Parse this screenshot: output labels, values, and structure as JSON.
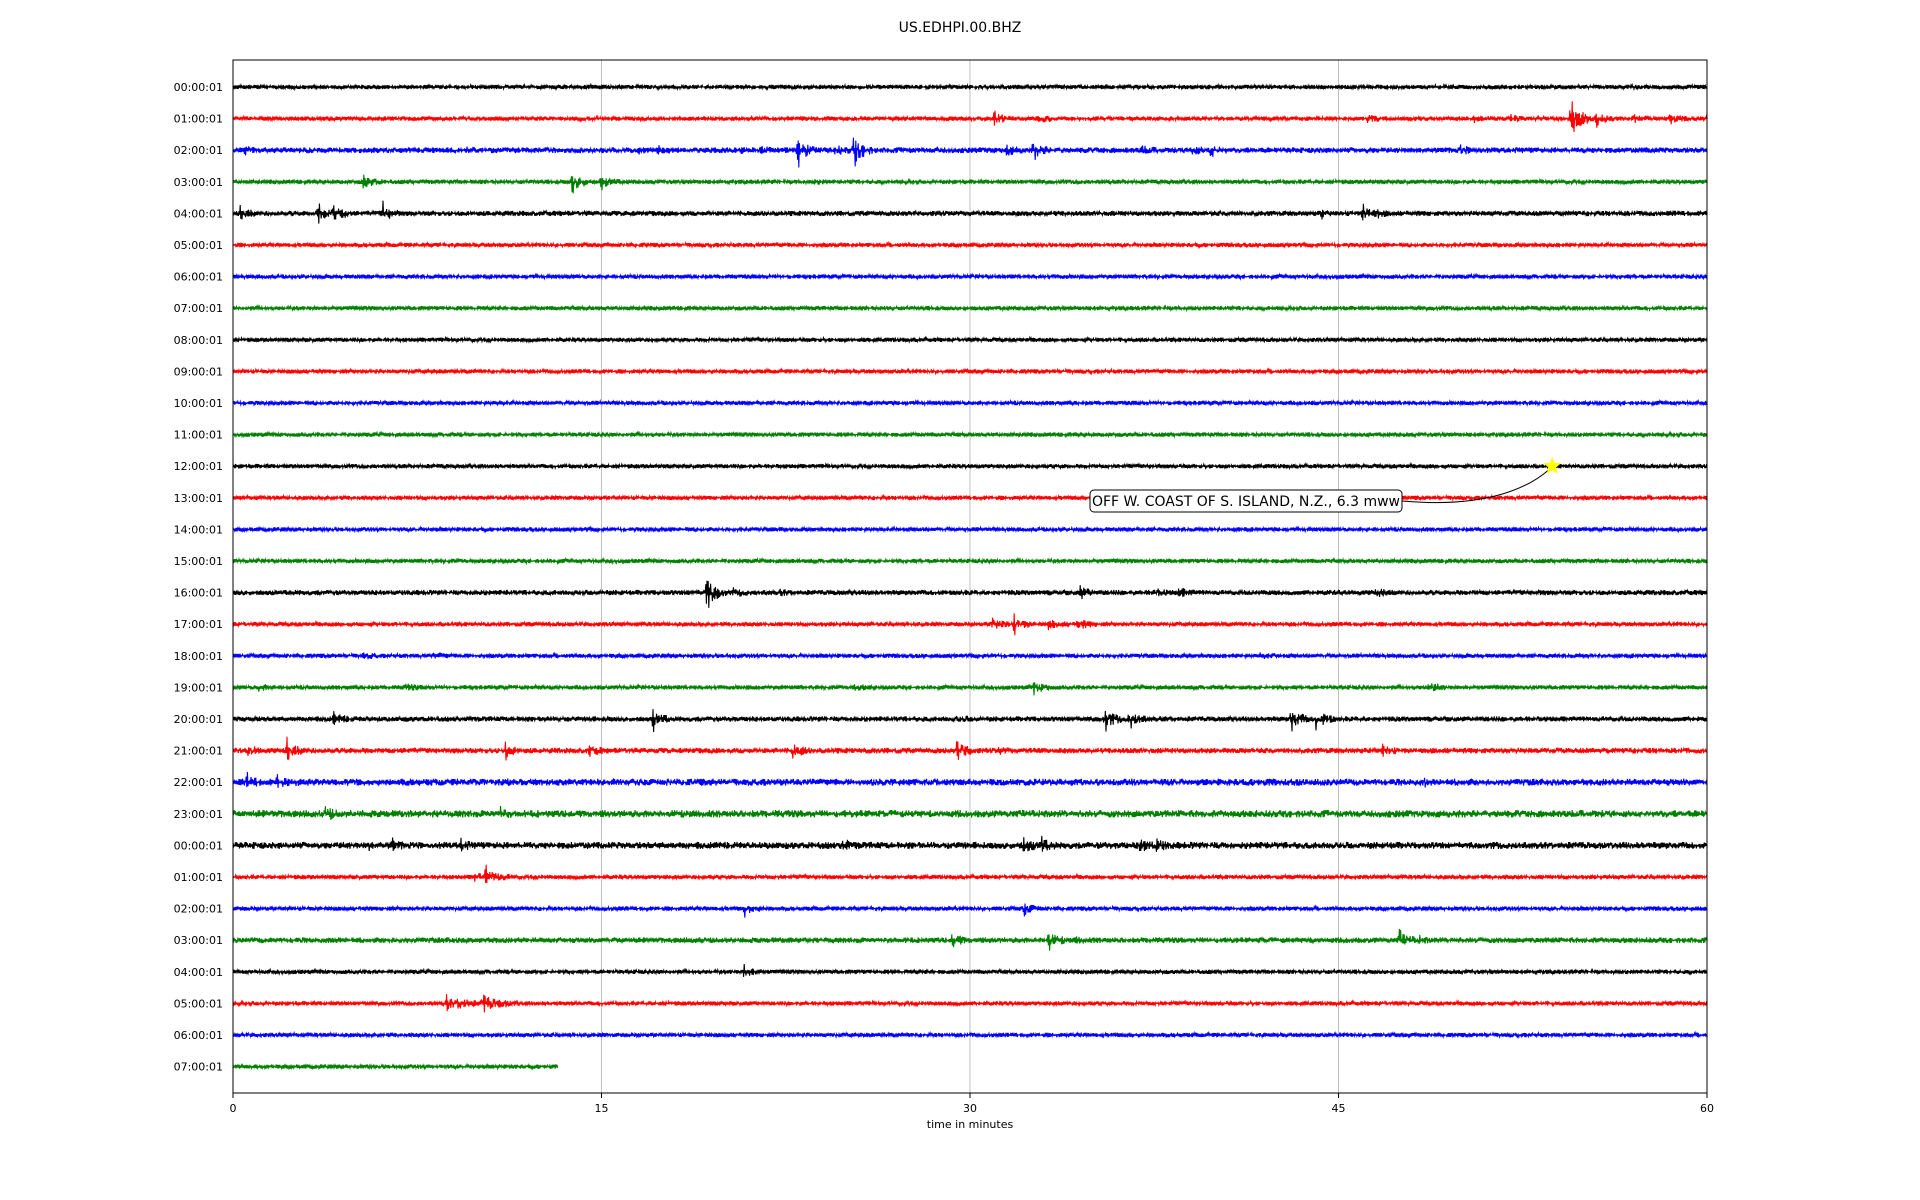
{
  "chart_data": {
    "type": "line",
    "title": "US.EDHPI.00.BHZ",
    "xlabel": "time in minutes",
    "ylabel": "",
    "xlim": [
      0,
      60
    ],
    "x_ticks": [
      "0",
      "15",
      "30",
      "45",
      "60"
    ],
    "grid": "vertical",
    "colors": [
      "#000000",
      "#ff0000",
      "#0000ff",
      "#008000"
    ],
    "rows": [
      {
        "label": "00:00:01",
        "end_min": 60,
        "noise": 1.0,
        "events": [
          {
            "t": 8.5,
            "amp": 2
          }
        ]
      },
      {
        "label": "01:00:01",
        "end_min": 60,
        "noise": 1.0,
        "events": [
          {
            "t": 31,
            "amp": 10
          },
          {
            "t": 32.8,
            "amp": 8
          },
          {
            "t": 46.2,
            "amp": 7
          },
          {
            "t": 50.5,
            "amp": 5
          },
          {
            "t": 52,
            "amp": 6
          },
          {
            "t": 54.5,
            "amp": 30
          },
          {
            "t": 55.5,
            "amp": 10
          },
          {
            "t": 57,
            "amp": 8
          },
          {
            "t": 58.5,
            "amp": 7
          },
          {
            "t": 60,
            "amp": 8
          }
        ]
      },
      {
        "label": "02:00:01",
        "end_min": 60,
        "noise": 1.3,
        "events": [
          {
            "t": 0.5,
            "amp": 8
          },
          {
            "t": 9.5,
            "amp": 5
          },
          {
            "t": 16.5,
            "amp": 5
          },
          {
            "t": 17.3,
            "amp": 8
          },
          {
            "t": 20.5,
            "amp": 6
          },
          {
            "t": 21.5,
            "amp": 7
          },
          {
            "t": 23,
            "amp": 20
          },
          {
            "t": 24.5,
            "amp": 12
          },
          {
            "t": 25.3,
            "amp": 22
          },
          {
            "t": 28.5,
            "amp": 6
          },
          {
            "t": 31.5,
            "amp": 10
          },
          {
            "t": 32.6,
            "amp": 14
          },
          {
            "t": 37,
            "amp": 8
          },
          {
            "t": 39,
            "amp": 10
          },
          {
            "t": 39.8,
            "amp": 14
          },
          {
            "t": 50,
            "amp": 8
          }
        ]
      },
      {
        "label": "03:00:01",
        "end_min": 60,
        "noise": 1.0,
        "events": [
          {
            "t": 5.3,
            "amp": 12
          },
          {
            "t": 13.8,
            "amp": 16
          },
          {
            "t": 15,
            "amp": 10
          },
          {
            "t": 23.5,
            "amp": 4
          }
        ]
      },
      {
        "label": "04:00:01",
        "end_min": 60,
        "noise": 1.2,
        "events": [
          {
            "t": 0.3,
            "amp": 10
          },
          {
            "t": 3.5,
            "amp": 14
          },
          {
            "t": 4.1,
            "amp": 16
          },
          {
            "t": 6.1,
            "amp": 14
          },
          {
            "t": 44.3,
            "amp": 8
          },
          {
            "t": 46,
            "amp": 14
          },
          {
            "t": 46.6,
            "amp": 6
          }
        ]
      },
      {
        "label": "05:00:01",
        "end_min": 60,
        "noise": 1.0,
        "events": [
          {
            "t": 16.5,
            "amp": 2
          }
        ]
      },
      {
        "label": "06:00:01",
        "end_min": 60,
        "noise": 1.0,
        "events": []
      },
      {
        "label": "07:00:01",
        "end_min": 60,
        "noise": 1.0,
        "events": []
      },
      {
        "label": "08:00:01",
        "end_min": 60,
        "noise": 1.0,
        "events": []
      },
      {
        "label": "09:00:01",
        "end_min": 60,
        "noise": 1.0,
        "events": []
      },
      {
        "label": "10:00:01",
        "end_min": 60,
        "noise": 1.0,
        "events": []
      },
      {
        "label": "11:00:01",
        "end_min": 60,
        "noise": 1.0,
        "events": []
      },
      {
        "label": "12:00:01",
        "end_min": 60,
        "noise": 1.0,
        "events": []
      },
      {
        "label": "13:00:01",
        "end_min": 60,
        "noise": 1.0,
        "events": []
      },
      {
        "label": "14:00:01",
        "end_min": 60,
        "noise": 1.0,
        "events": []
      },
      {
        "label": "15:00:01",
        "end_min": 60,
        "noise": 1.0,
        "events": []
      },
      {
        "label": "16:00:01",
        "end_min": 60,
        "noise": 1.2,
        "events": [
          {
            "t": 19.3,
            "amp": 26
          },
          {
            "t": 20.4,
            "amp": 8
          },
          {
            "t": 22.3,
            "amp": 5
          },
          {
            "t": 34.5,
            "amp": 10
          },
          {
            "t": 37.5,
            "amp": 8
          },
          {
            "t": 38.5,
            "amp": 9
          },
          {
            "t": 46.5,
            "amp": 9
          },
          {
            "t": 53,
            "amp": 4
          }
        ]
      },
      {
        "label": "17:00:01",
        "end_min": 60,
        "noise": 1.0,
        "events": [
          {
            "t": 30.9,
            "amp": 14
          },
          {
            "t": 31.8,
            "amp": 12
          },
          {
            "t": 33.2,
            "amp": 9
          },
          {
            "t": 34.4,
            "amp": 9
          }
        ]
      },
      {
        "label": "18:00:01",
        "end_min": 60,
        "noise": 1.0,
        "events": [
          {
            "t": 5.3,
            "amp": 5
          },
          {
            "t": 8.2,
            "amp": 5
          },
          {
            "t": 41.8,
            "amp": 6
          }
        ]
      },
      {
        "label": "19:00:01",
        "end_min": 60,
        "noise": 1.0,
        "events": [
          {
            "t": 1,
            "amp": 6
          },
          {
            "t": 7,
            "amp": 6
          },
          {
            "t": 25.3,
            "amp": 5
          },
          {
            "t": 32.6,
            "amp": 10
          },
          {
            "t": 48.6,
            "amp": 10
          }
        ]
      },
      {
        "label": "20:00:01",
        "end_min": 60,
        "noise": 1.2,
        "events": [
          {
            "t": 4.1,
            "amp": 10
          },
          {
            "t": 17.1,
            "amp": 14
          },
          {
            "t": 29.5,
            "amp": 6
          },
          {
            "t": 35.5,
            "amp": 16
          },
          {
            "t": 36.5,
            "amp": 14
          },
          {
            "t": 43.1,
            "amp": 18
          },
          {
            "t": 44.1,
            "amp": 20
          }
        ]
      },
      {
        "label": "21:00:01",
        "end_min": 60,
        "noise": 1.3,
        "events": [
          {
            "t": 0.6,
            "amp": 10
          },
          {
            "t": 2.2,
            "amp": 16
          },
          {
            "t": 11.1,
            "amp": 12
          },
          {
            "t": 14.5,
            "amp": 10
          },
          {
            "t": 22.8,
            "amp": 14
          },
          {
            "t": 29.5,
            "amp": 18
          },
          {
            "t": 31.2,
            "amp": 6
          },
          {
            "t": 46.8,
            "amp": 10
          }
        ]
      },
      {
        "label": "22:00:01",
        "end_min": 60,
        "noise": 1.6,
        "events": [
          {
            "t": 0.6,
            "amp": 12
          },
          {
            "t": 1.8,
            "amp": 10
          },
          {
            "t": 2.5,
            "amp": 6
          },
          {
            "t": 11.2,
            "amp": 6
          },
          {
            "t": 15.5,
            "amp": 5
          },
          {
            "t": 33.9,
            "amp": 4
          },
          {
            "t": 48.5,
            "amp": 6
          }
        ]
      },
      {
        "label": "23:00:01",
        "end_min": 60,
        "noise": 1.7,
        "events": [
          {
            "t": 3.8,
            "amp": 14
          },
          {
            "t": 10.9,
            "amp": 12
          },
          {
            "t": 4.5,
            "amp": 6
          }
        ]
      },
      {
        "label": "00:00:01",
        "end_min": 60,
        "noise": 1.6,
        "events": [
          {
            "t": 5.5,
            "amp": 8
          },
          {
            "t": 6.5,
            "amp": 10
          },
          {
            "t": 9.3,
            "amp": 10
          },
          {
            "t": 24.8,
            "amp": 14
          },
          {
            "t": 32.2,
            "amp": 14
          },
          {
            "t": 32.9,
            "amp": 14
          },
          {
            "t": 36.9,
            "amp": 16
          },
          {
            "t": 37.6,
            "amp": 12
          }
        ]
      },
      {
        "label": "01:00:01",
        "end_min": 60,
        "noise": 1.0,
        "events": [
          {
            "t": 9.8,
            "amp": 8
          },
          {
            "t": 10.3,
            "amp": 14
          },
          {
            "t": 10.8,
            "amp": 6
          }
        ]
      },
      {
        "label": "02:00:01",
        "end_min": 60,
        "noise": 1.0,
        "events": [
          {
            "t": 20.8,
            "amp": 10
          },
          {
            "t": 32.2,
            "amp": 10
          }
        ]
      },
      {
        "label": "03:00:01",
        "end_min": 60,
        "noise": 1.3,
        "events": [
          {
            "t": 29.3,
            "amp": 12
          },
          {
            "t": 33.2,
            "amp": 14
          },
          {
            "t": 34.3,
            "amp": 6
          },
          {
            "t": 47.5,
            "amp": 14
          },
          {
            "t": 48.3,
            "amp": 6
          }
        ]
      },
      {
        "label": "04:00:01",
        "end_min": 60,
        "noise": 1.0,
        "events": [
          {
            "t": 20.8,
            "amp": 10
          }
        ]
      },
      {
        "label": "05:00:01",
        "end_min": 60,
        "noise": 1.0,
        "events": [
          {
            "t": 8.7,
            "amp": 10
          },
          {
            "t": 9.2,
            "amp": 12
          },
          {
            "t": 10.2,
            "amp": 16
          },
          {
            "t": 10.8,
            "amp": 8
          }
        ]
      },
      {
        "label": "06:00:01",
        "end_min": 60,
        "noise": 1.0,
        "events": []
      },
      {
        "label": "07:00:01",
        "end_min": 13.2,
        "noise": 1.0,
        "events": []
      }
    ],
    "annotation": {
      "text": "OFF W. COAST OF S. ISLAND, N.Z., 6.3 mww",
      "row": 12,
      "t": 53.7,
      "marker": "star",
      "marker_color": "#ffff00"
    }
  }
}
